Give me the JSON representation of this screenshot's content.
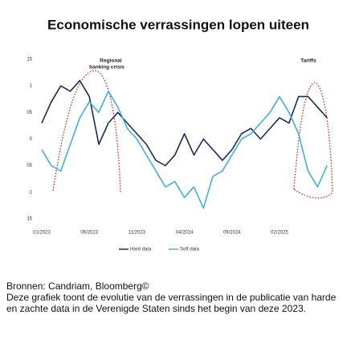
{
  "chart_data": {
    "type": "line",
    "title": "Economische verrassingen lopen uiteen",
    "categories": [
      "01/2023",
      null,
      null,
      null,
      null,
      "06/2023",
      null,
      null,
      null,
      null,
      "11/2023",
      null,
      null,
      null,
      null,
      "04/2024",
      null,
      null,
      null,
      null,
      "09/2024",
      null,
      null,
      null,
      null,
      "02/2025",
      null,
      null,
      null,
      null,
      null
    ],
    "series": [
      {
        "name": "Hard data",
        "color": "#1b2a5c",
        "values": [
          0.3,
          0.7,
          1.0,
          0.9,
          1.1,
          0.8,
          -0.1,
          0.3,
          0.5,
          0.3,
          0.1,
          -0.1,
          -0.4,
          -0.5,
          -0.3,
          0.1,
          -0.3,
          0.0,
          -0.2,
          -0.4,
          -0.2,
          0.1,
          0.2,
          0.0,
          0.2,
          0.4,
          0.3,
          0.8,
          0.8,
          0.6,
          0.4
        ]
      },
      {
        "name": "Soft data",
        "color": "#3fb0e0",
        "values": [
          -0.2,
          -0.5,
          -0.6,
          -0.1,
          0.4,
          0.7,
          0.5,
          0.9,
          0.6,
          0.2,
          0.0,
          -0.3,
          -0.6,
          -0.9,
          -0.8,
          -1.1,
          -0.9,
          -1.3,
          -0.7,
          -0.6,
          -0.3,
          0.0,
          0.1,
          0.3,
          0.5,
          0.8,
          0.5,
          0.1,
          -0.6,
          -0.9,
          -0.5
        ]
      }
    ],
    "ylim": [
      -1.5,
      1.5
    ],
    "yticks": [
      {
        "value": 1.5,
        "label": "15"
      },
      1,
      {
        "value": 0.5,
        "label": "05"
      },
      0,
      {
        "value": -0.5,
        "label": "05"
      },
      -1,
      {
        "value": -1.5,
        "label": "15"
      }
    ],
    "annotations": [
      "Regional",
      "banking crisis",
      "Tariffs"
    ],
    "grid": false
  },
  "footer": {
    "source": "Bronnen: Candriam, Bloomberg©",
    "description": "Deze grafiek toont de evolutie van de verrassingen in de publicatie van harde en zachte data in de Verenigde Staten sinds het begin van deze 2023."
  }
}
